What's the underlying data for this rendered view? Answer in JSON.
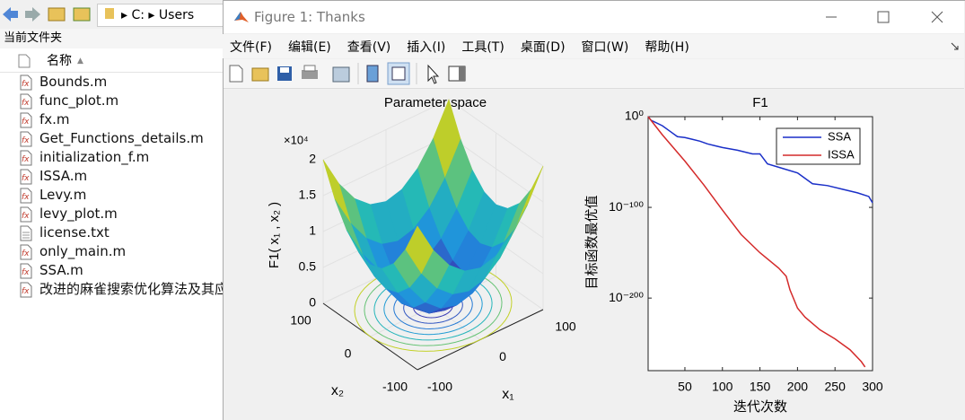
{
  "explorer": {
    "path": [
      "C:",
      "Users"
    ],
    "panel_title": "当前文件夹",
    "column": "名称",
    "files": [
      "Bounds.m",
      "func_plot.m",
      "fx.m",
      "Get_Functions_details.m",
      "initialization_f.m",
      "ISSA.m",
      "Levy.m",
      "levy_plot.m",
      "license.txt",
      "only_main.m",
      "SSA.m",
      "改进的麻雀搜索优化算法及其应"
    ]
  },
  "window": {
    "title": "Figure 1: Thanks",
    "menu": [
      "文件(F)",
      "编辑(E)",
      "查看(V)",
      "插入(I)",
      "工具(T)",
      "桌面(D)",
      "窗口(W)",
      "帮助(H)"
    ]
  },
  "chart_data": [
    {
      "type": "surface",
      "title": "Parameter space",
      "x": [
        -100,
        -75,
        -50,
        -25,
        0,
        25,
        50,
        75,
        100
      ],
      "y": [
        -100,
        -75,
        -50,
        -25,
        0,
        25,
        50,
        75,
        100
      ],
      "z": [
        [
          20000,
          15625,
          12500,
          10625,
          10000,
          10625,
          12500,
          15625,
          20000
        ],
        [
          15625,
          11250,
          8125,
          6250,
          5625,
          6250,
          8125,
          11250,
          15625
        ],
        [
          12500,
          8125,
          5000,
          3125,
          2500,
          3125,
          5000,
          8125,
          12500
        ],
        [
          10625,
          6250,
          3125,
          1250,
          625,
          1250,
          3125,
          6250,
          10625
        ],
        [
          10000,
          5625,
          2500,
          625,
          0,
          625,
          2500,
          5625,
          10000
        ],
        [
          10625,
          6250,
          3125,
          1250,
          625,
          1250,
          3125,
          6250,
          10625
        ],
        [
          12500,
          8125,
          5000,
          3125,
          2500,
          3125,
          5000,
          8125,
          12500
        ],
        [
          15625,
          11250,
          8125,
          6250,
          5625,
          6250,
          8125,
          11250,
          15625
        ],
        [
          20000,
          15625,
          12500,
          10625,
          10000,
          10625,
          12500,
          15625,
          20000
        ]
      ],
      "xlim": [
        -100,
        100
      ],
      "ylim": [
        -100,
        100
      ],
      "zlim": [
        0,
        20000
      ],
      "xticks": [
        -100,
        0,
        100
      ],
      "yticks": [
        -100,
        0,
        100
      ],
      "zticks": [
        0,
        {
          "value": 5000,
          "label": "0.5"
        },
        {
          "value": 10000,
          "label": "1"
        },
        {
          "value": 15000,
          "label": "1.5"
        },
        {
          "value": 20000,
          "label": "2"
        }
      ],
      "z_multiplier": "×10⁴",
      "xlabel": "x₁",
      "ylabel": "x₂",
      "zlabel": "F1( x₁ , x₂ )",
      "contours": true
    },
    {
      "type": "line",
      "title": "F1",
      "xlabel": "迭代次数",
      "ylabel": "目标函数最优值",
      "xlim": [
        1,
        300
      ],
      "xticks": [
        50,
        100,
        150,
        200,
        250,
        300
      ],
      "ylim": [
        1e-280,
        1
      ],
      "yscale": "log",
      "yticks": [
        {
          "value": 1,
          "label": "10⁰"
        },
        {
          "value": 1e-100,
          "label": "10⁻¹⁰⁰"
        },
        {
          "value": 1e-200,
          "label": "10⁻²⁰⁰"
        }
      ],
      "legend": "northeast",
      "series": [
        {
          "name": "SSA",
          "color": "#1a2fc8",
          "x": [
            1,
            5,
            20,
            30,
            40,
            50,
            60,
            70,
            80,
            90,
            100,
            120,
            140,
            150,
            160,
            180,
            200,
            220,
            240,
            260,
            280,
            295,
            300
          ],
          "values": [
            1,
            0.0001,
            1e-10,
            1e-16,
            1e-22,
            1e-23,
            1e-25,
            1e-27,
            1e-30,
            1e-32,
            1e-34,
            1e-37,
            1e-41,
            1e-41,
            1e-52,
            1e-57,
            1e-62,
            1e-74,
            1e-76,
            1e-80,
            1e-84,
            1e-88,
            1e-95
          ]
        },
        {
          "name": "ISSA",
          "color": "#d42a2a",
          "x": [
            1,
            20,
            50,
            75,
            100,
            125,
            150,
            175,
            185,
            190,
            200,
            210,
            230,
            250,
            270,
            285,
            290
          ],
          "values": [
            1,
            1e-20,
            1e-49,
            1e-75,
            1e-103,
            1e-130,
            1e-150,
            1e-167,
            1e-176,
            1e-191,
            1e-211,
            1e-221,
            1e-235,
            1e-245,
            1e-257,
            1e-270,
            1e-276
          ]
        }
      ]
    }
  ]
}
